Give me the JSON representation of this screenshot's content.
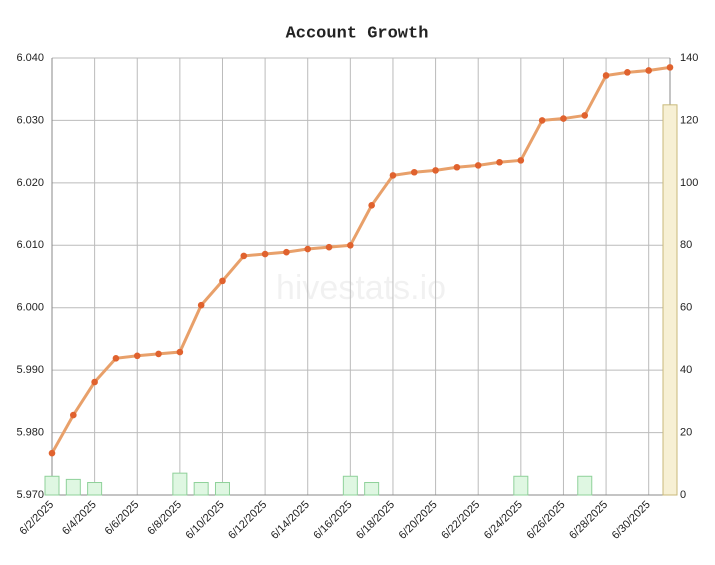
{
  "chart_data": {
    "type": "bar-line",
    "title": "Account Growth",
    "watermark": "hivestats.io",
    "categories": [
      "6/2/2025",
      null,
      "6/4/2025",
      null,
      "6/6/2025",
      null,
      "6/8/2025",
      null,
      "6/10/2025",
      null,
      "6/12/2025",
      null,
      "6/14/2025",
      null,
      "6/16/2025",
      null,
      "6/18/2025",
      null,
      "6/20/2025",
      null,
      "6/22/2025",
      null,
      "6/24/2025",
      null,
      "6/26/2025",
      null,
      "6/28/2025",
      null,
      "6/30/2025",
      null
    ],
    "series": [
      {
        "type": "line",
        "color": "#e8a06a",
        "marker_color": "#e0622e",
        "axis": "y",
        "values": [
          5.9767,
          5.9828,
          5.9881,
          5.9919,
          5.9923,
          5.9926,
          5.9929,
          6.0004,
          6.0043,
          6.0083,
          6.0086,
          6.0089,
          6.0094,
          6.0097,
          6.01,
          6.0164,
          6.0212,
          6.0217,
          6.022,
          6.0225,
          6.0228,
          6.0233,
          6.0236,
          6.03,
          6.0303,
          6.0308,
          6.0372,
          6.0377,
          6.038,
          6.0385
        ]
      },
      {
        "type": "bar",
        "axis": "y2",
        "colors": [
          "#dff7e2",
          "#dff7e2",
          "#dff7e2",
          "#dff7e2",
          "#dff7e2",
          "#dff7e2",
          "#dff7e2",
          "#dff7e2",
          "#dff7e2",
          "#dff7e2",
          "#dff7e2",
          "#dff7e2",
          "#dff7e2",
          "#dff7e2",
          "#dff7e2",
          "#dff7e2",
          "#dff7e2",
          "#dff7e2",
          "#dff7e2",
          "#dff7e2",
          "#dff7e2",
          "#dff7e2",
          "#dff7e2",
          "#dff7e2",
          "#dff7e2",
          "#dff7e2",
          "#dff7e2",
          "#dff7e2",
          "#dff7e2",
          "#f7f0d4"
        ],
        "values": [
          6,
          5,
          4,
          0,
          0,
          0,
          7,
          4,
          4,
          0,
          0,
          0,
          0,
          0,
          6,
          4,
          0,
          0,
          0,
          0,
          0,
          0,
          6,
          0,
          0,
          6,
          0,
          0,
          0,
          125
        ]
      }
    ],
    "ylim": [
      5.97,
      6.04
    ],
    "yticks": [
      {
        "value": 5.97,
        "label": "5.970"
      },
      {
        "value": 5.98,
        "label": "5.980"
      },
      {
        "value": 5.99,
        "label": "5.990"
      },
      {
        "value": 6.0,
        "label": "6.000"
      },
      {
        "value": 6.01,
        "label": "6.010"
      },
      {
        "value": 6.02,
        "label": "6.020"
      },
      {
        "value": 6.03,
        "label": "6.030"
      },
      {
        "value": 6.04,
        "label": "6.040"
      }
    ],
    "y2lim": [
      0,
      140
    ],
    "y2ticks": [
      0,
      20,
      40,
      60,
      80,
      100,
      120,
      140
    ],
    "grid": true
  }
}
